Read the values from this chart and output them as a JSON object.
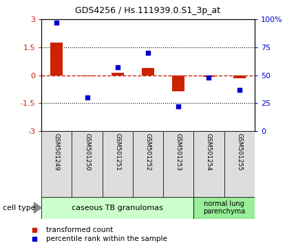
{
  "title": "GDS4256 / Hs.111939.0.S1_3p_at",
  "samples": [
    "GSM501249",
    "GSM501250",
    "GSM501251",
    "GSM501252",
    "GSM501253",
    "GSM501254",
    "GSM501255"
  ],
  "transformed_counts": [
    1.75,
    -0.05,
    0.15,
    0.4,
    -0.85,
    -0.1,
    -0.15
  ],
  "percentile_ranks": [
    97,
    30,
    57,
    70,
    22,
    48,
    37
  ],
  "bar_color": "#cc2200",
  "dot_color": "#0000cc",
  "zero_line_color": "#cc2200",
  "dotted_line_color": "#000000",
  "group1_label": "caseous TB granulomas",
  "group2_label": "normal lung\nparenchyma",
  "group1_color": "#ccffcc",
  "group2_color": "#99ee99",
  "sample_box_color": "#dddddd",
  "cell_type_label": "cell type",
  "legend_bar_label": "transformed count",
  "legend_dot_label": "percentile rank within the sample",
  "ylim_left": [
    -3,
    3
  ],
  "ylim_right": [
    0,
    100
  ],
  "yticks_left": [
    -3,
    -1.5,
    0,
    1.5,
    3
  ],
  "yticks_right": [
    0,
    25,
    50,
    75,
    100
  ],
  "yticklabels_right": [
    "0",
    "25",
    "50",
    "75",
    "100%"
  ]
}
